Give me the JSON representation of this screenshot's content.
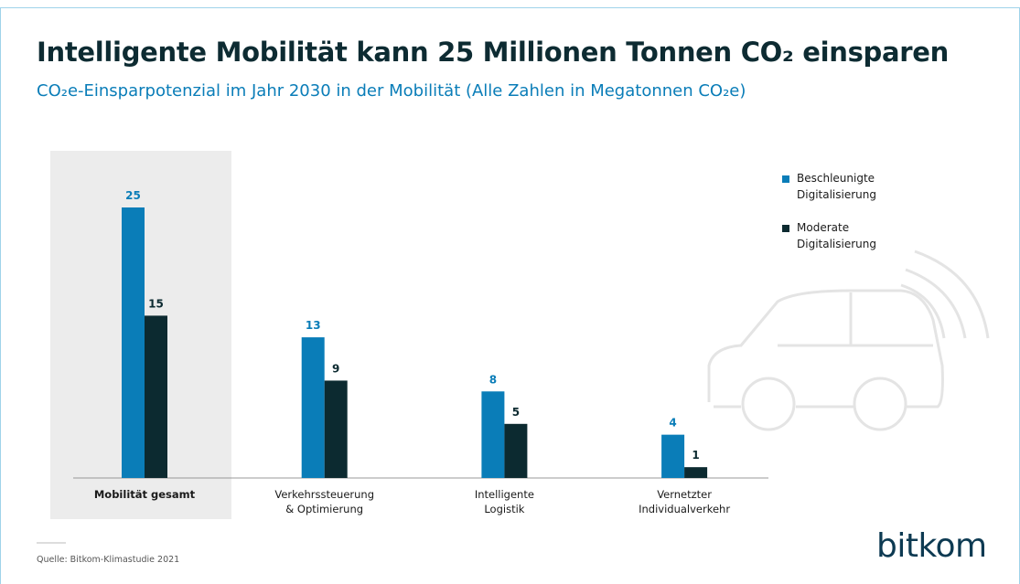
{
  "chart_data": {
    "type": "bar",
    "title": "Intelligente Mobilität kann 25 Millionen Tonnen CO₂ einsparen",
    "subtitle": "CO₂e-Einsparpotenzial im Jahr 2030 in der Mobilität (Alle Zahlen in Megatonnen CO₂e)",
    "categories": [
      "Mobilität gesamt",
      "Verkehrssteuerung\n& Optimierung",
      "Intelligente\nLogistik",
      "Vernetzter\nIndividualverkehr"
    ],
    "series": [
      {
        "name": "Beschleunigte\nDigitalisierung",
        "color": "#0a7db8",
        "values": [
          25,
          13,
          8,
          4
        ]
      },
      {
        "name": "Moderate\nDigitalisierung",
        "color": "#0c2a30",
        "values": [
          15,
          9,
          5,
          1
        ]
      }
    ],
    "ylim": [
      0,
      25
    ],
    "source": "Quelle: Bitkom-Klimastudie 2021",
    "logo": "bitkom"
  }
}
